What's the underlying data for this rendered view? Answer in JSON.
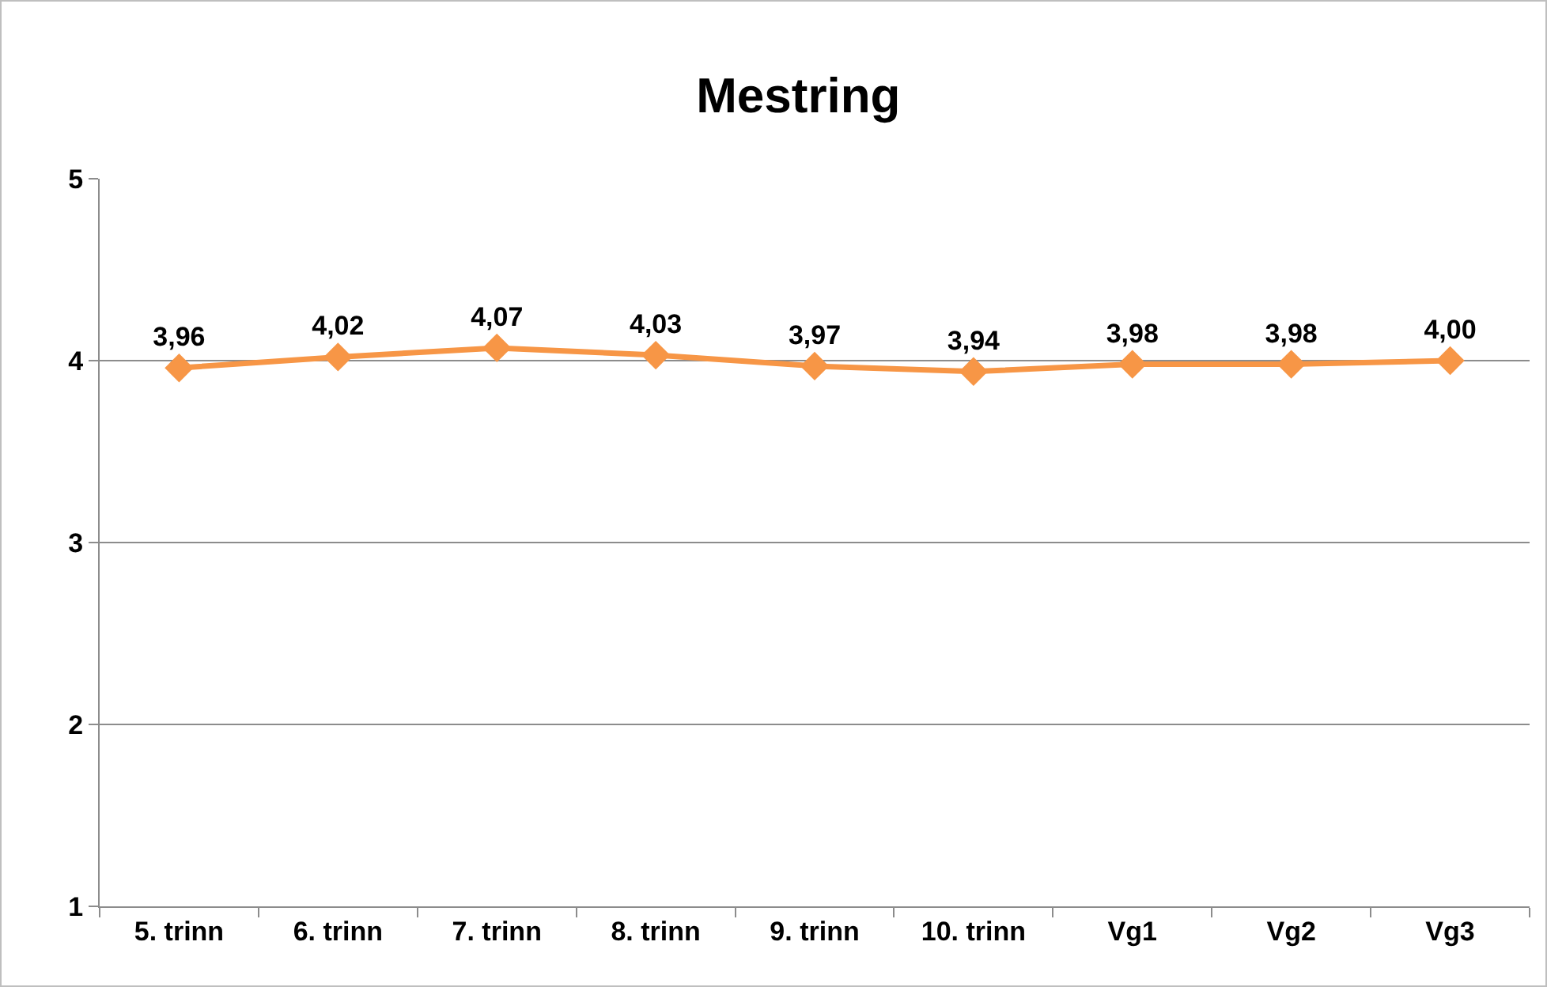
{
  "chart_data": {
    "type": "line",
    "title": "Mestring",
    "categories": [
      "5. trinn",
      "6. trinn",
      "7. trinn",
      "8. trinn",
      "9. trinn",
      "10. trinn",
      "Vg1",
      "Vg2",
      "Vg3"
    ],
    "series": [
      {
        "color": "#f79646",
        "values": [
          3.96,
          4.02,
          4.07,
          4.03,
          3.97,
          3.94,
          3.98,
          3.98,
          4.0
        ],
        "value_labels": [
          "3,96",
          "4,02",
          "4,07",
          "4,03",
          "3,97",
          "3,94",
          "3,98",
          "3,98",
          "4,00"
        ]
      }
    ],
    "ylim": [
      1,
      5
    ],
    "yticks": [
      1,
      2,
      3,
      4,
      5
    ],
    "grid": "y",
    "legend": false,
    "marker": "diamond",
    "line_style": "solid"
  }
}
